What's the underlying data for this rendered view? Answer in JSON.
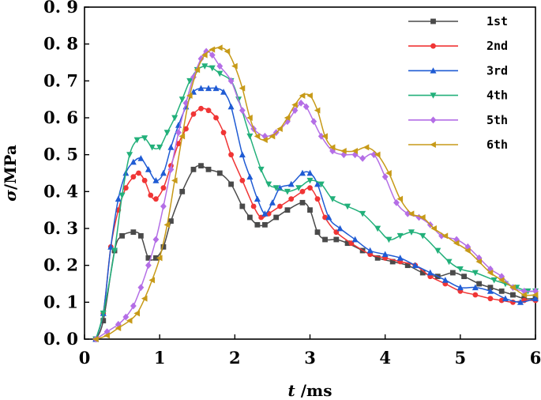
{
  "chart_data": {
    "type": "line",
    "title": "",
    "xlabel_italic": "t",
    "xlabel_unit": " /ms",
    "ylabel_italic": "σ",
    "ylabel_unit": "/MPa",
    "xlim": [
      0,
      6
    ],
    "ylim": [
      0,
      0.9
    ],
    "x_ticks": [
      "0",
      "1",
      "2",
      "3",
      "4",
      "5",
      "6"
    ],
    "y_ticks": [
      "0. 0",
      "0. 1",
      "0. 2",
      "0. 3",
      "0. 4",
      "0. 5",
      "0. 6",
      "0. 7",
      "0. 8",
      "0. 9"
    ],
    "legend_position": "top-right",
    "series": [
      {
        "name": "1st",
        "color": "#4a4a4a",
        "marker": "square",
        "points": [
          [
            0.15,
            0.0
          ],
          [
            0.25,
            0.05
          ],
          [
            0.4,
            0.24
          ],
          [
            0.5,
            0.28
          ],
          [
            0.65,
            0.29
          ],
          [
            0.75,
            0.28
          ],
          [
            0.85,
            0.22
          ],
          [
            0.95,
            0.22
          ],
          [
            1.05,
            0.25
          ],
          [
            1.15,
            0.32
          ],
          [
            1.3,
            0.4
          ],
          [
            1.45,
            0.46
          ],
          [
            1.55,
            0.47
          ],
          [
            1.65,
            0.46
          ],
          [
            1.8,
            0.45
          ],
          [
            1.95,
            0.42
          ],
          [
            2.1,
            0.36
          ],
          [
            2.2,
            0.33
          ],
          [
            2.3,
            0.31
          ],
          [
            2.4,
            0.31
          ],
          [
            2.55,
            0.33
          ],
          [
            2.7,
            0.35
          ],
          [
            2.9,
            0.37
          ],
          [
            3.0,
            0.35
          ],
          [
            3.1,
            0.29
          ],
          [
            3.2,
            0.27
          ],
          [
            3.35,
            0.27
          ],
          [
            3.5,
            0.26
          ],
          [
            3.7,
            0.24
          ],
          [
            3.9,
            0.22
          ],
          [
            4.1,
            0.21
          ],
          [
            4.3,
            0.2
          ],
          [
            4.5,
            0.18
          ],
          [
            4.7,
            0.17
          ],
          [
            4.9,
            0.18
          ],
          [
            5.05,
            0.17
          ],
          [
            5.25,
            0.15
          ],
          [
            5.4,
            0.14
          ],
          [
            5.55,
            0.13
          ],
          [
            5.7,
            0.12
          ],
          [
            5.85,
            0.11
          ],
          [
            6.0,
            0.11
          ]
        ]
      },
      {
        "name": "2nd",
        "color": "#f03535",
        "marker": "circle",
        "points": [
          [
            0.15,
            0.0
          ],
          [
            0.25,
            0.07
          ],
          [
            0.35,
            0.25
          ],
          [
            0.45,
            0.35
          ],
          [
            0.55,
            0.41
          ],
          [
            0.65,
            0.44
          ],
          [
            0.72,
            0.45
          ],
          [
            0.8,
            0.43
          ],
          [
            0.88,
            0.39
          ],
          [
            0.95,
            0.38
          ],
          [
            1.05,
            0.41
          ],
          [
            1.15,
            0.47
          ],
          [
            1.25,
            0.53
          ],
          [
            1.35,
            0.57
          ],
          [
            1.45,
            0.61
          ],
          [
            1.55,
            0.625
          ],
          [
            1.65,
            0.62
          ],
          [
            1.75,
            0.6
          ],
          [
            1.85,
            0.56
          ],
          [
            1.95,
            0.5
          ],
          [
            2.1,
            0.43
          ],
          [
            2.25,
            0.36
          ],
          [
            2.35,
            0.33
          ],
          [
            2.45,
            0.34
          ],
          [
            2.6,
            0.36
          ],
          [
            2.75,
            0.38
          ],
          [
            2.9,
            0.4
          ],
          [
            3.0,
            0.41
          ],
          [
            3.1,
            0.38
          ],
          [
            3.2,
            0.33
          ],
          [
            3.35,
            0.29
          ],
          [
            3.55,
            0.26
          ],
          [
            3.8,
            0.23
          ],
          [
            4.0,
            0.22
          ],
          [
            4.2,
            0.21
          ],
          [
            4.4,
            0.2
          ],
          [
            4.6,
            0.17
          ],
          [
            4.8,
            0.15
          ],
          [
            5.0,
            0.13
          ],
          [
            5.2,
            0.12
          ],
          [
            5.4,
            0.11
          ],
          [
            5.55,
            0.105
          ],
          [
            5.7,
            0.1
          ],
          [
            5.85,
            0.105
          ],
          [
            6.0,
            0.105
          ]
        ]
      },
      {
        "name": "3rd",
        "color": "#1f5bd4",
        "marker": "triangle-up",
        "points": [
          [
            0.15,
            0.0
          ],
          [
            0.25,
            0.07
          ],
          [
            0.35,
            0.25
          ],
          [
            0.45,
            0.38
          ],
          [
            0.55,
            0.45
          ],
          [
            0.65,
            0.48
          ],
          [
            0.75,
            0.49
          ],
          [
            0.85,
            0.46
          ],
          [
            0.95,
            0.43
          ],
          [
            1.05,
            0.45
          ],
          [
            1.15,
            0.52
          ],
          [
            1.25,
            0.58
          ],
          [
            1.35,
            0.63
          ],
          [
            1.45,
            0.67
          ],
          [
            1.55,
            0.68
          ],
          [
            1.65,
            0.68
          ],
          [
            1.75,
            0.68
          ],
          [
            1.85,
            0.67
          ],
          [
            1.95,
            0.63
          ],
          [
            2.1,
            0.5
          ],
          [
            2.2,
            0.44
          ],
          [
            2.3,
            0.38
          ],
          [
            2.4,
            0.34
          ],
          [
            2.5,
            0.37
          ],
          [
            2.6,
            0.41
          ],
          [
            2.75,
            0.42
          ],
          [
            2.9,
            0.45
          ],
          [
            3.0,
            0.45
          ],
          [
            3.1,
            0.42
          ],
          [
            3.25,
            0.33
          ],
          [
            3.4,
            0.3
          ],
          [
            3.6,
            0.27
          ],
          [
            3.8,
            0.24
          ],
          [
            4.0,
            0.23
          ],
          [
            4.2,
            0.22
          ],
          [
            4.4,
            0.2
          ],
          [
            4.6,
            0.18
          ],
          [
            4.8,
            0.16
          ],
          [
            5.0,
            0.14
          ],
          [
            5.2,
            0.14
          ],
          [
            5.4,
            0.13
          ],
          [
            5.6,
            0.11
          ],
          [
            5.8,
            0.1
          ],
          [
            6.0,
            0.11
          ]
        ]
      },
      {
        "name": "4th",
        "color": "#22b07a",
        "marker": "triangle-down",
        "points": [
          [
            0.15,
            0.0
          ],
          [
            0.25,
            0.07
          ],
          [
            0.4,
            0.24
          ],
          [
            0.5,
            0.39
          ],
          [
            0.6,
            0.5
          ],
          [
            0.7,
            0.54
          ],
          [
            0.8,
            0.545
          ],
          [
            0.9,
            0.52
          ],
          [
            1.0,
            0.52
          ],
          [
            1.1,
            0.56
          ],
          [
            1.2,
            0.6
          ],
          [
            1.3,
            0.65
          ],
          [
            1.4,
            0.7
          ],
          [
            1.5,
            0.73
          ],
          [
            1.6,
            0.74
          ],
          [
            1.7,
            0.735
          ],
          [
            1.8,
            0.72
          ],
          [
            1.95,
            0.7
          ],
          [
            2.05,
            0.65
          ],
          [
            2.2,
            0.55
          ],
          [
            2.35,
            0.46
          ],
          [
            2.45,
            0.42
          ],
          [
            2.55,
            0.41
          ],
          [
            2.7,
            0.4
          ],
          [
            2.85,
            0.41
          ],
          [
            3.0,
            0.43
          ],
          [
            3.15,
            0.42
          ],
          [
            3.3,
            0.38
          ],
          [
            3.5,
            0.36
          ],
          [
            3.7,
            0.34
          ],
          [
            3.9,
            0.3
          ],
          [
            4.05,
            0.27
          ],
          [
            4.2,
            0.28
          ],
          [
            4.35,
            0.29
          ],
          [
            4.5,
            0.28
          ],
          [
            4.7,
            0.24
          ],
          [
            4.85,
            0.21
          ],
          [
            5.0,
            0.19
          ],
          [
            5.2,
            0.18
          ],
          [
            5.45,
            0.16
          ],
          [
            5.6,
            0.15
          ],
          [
            5.75,
            0.14
          ],
          [
            5.9,
            0.13
          ],
          [
            6.0,
            0.13
          ]
        ]
      },
      {
        "name": "5th",
        "color": "#b46ee6",
        "marker": "diamond",
        "points": [
          [
            0.15,
            0.0
          ],
          [
            0.3,
            0.02
          ],
          [
            0.45,
            0.04
          ],
          [
            0.55,
            0.06
          ],
          [
            0.65,
            0.09
          ],
          [
            0.75,
            0.14
          ],
          [
            0.85,
            0.2
          ],
          [
            0.95,
            0.27
          ],
          [
            1.05,
            0.36
          ],
          [
            1.15,
            0.46
          ],
          [
            1.25,
            0.56
          ],
          [
            1.35,
            0.64
          ],
          [
            1.45,
            0.71
          ],
          [
            1.55,
            0.76
          ],
          [
            1.62,
            0.78
          ],
          [
            1.7,
            0.77
          ],
          [
            1.8,
            0.74
          ],
          [
            1.95,
            0.7
          ],
          [
            2.1,
            0.62
          ],
          [
            2.25,
            0.57
          ],
          [
            2.4,
            0.55
          ],
          [
            2.55,
            0.56
          ],
          [
            2.7,
            0.59
          ],
          [
            2.8,
            0.62
          ],
          [
            2.88,
            0.64
          ],
          [
            2.95,
            0.63
          ],
          [
            3.05,
            0.59
          ],
          [
            3.15,
            0.55
          ],
          [
            3.3,
            0.51
          ],
          [
            3.45,
            0.5
          ],
          [
            3.6,
            0.5
          ],
          [
            3.7,
            0.49
          ],
          [
            3.85,
            0.5
          ],
          [
            4.0,
            0.44
          ],
          [
            4.15,
            0.37
          ],
          [
            4.3,
            0.34
          ],
          [
            4.45,
            0.33
          ],
          [
            4.6,
            0.31
          ],
          [
            4.75,
            0.28
          ],
          [
            4.95,
            0.27
          ],
          [
            5.1,
            0.25
          ],
          [
            5.25,
            0.22
          ],
          [
            5.4,
            0.19
          ],
          [
            5.55,
            0.17
          ],
          [
            5.7,
            0.14
          ],
          [
            5.85,
            0.13
          ],
          [
            6.0,
            0.13
          ]
        ]
      },
      {
        "name": "6th",
        "color": "#c79a18",
        "marker": "triangle-left",
        "points": [
          [
            0.15,
            0.0
          ],
          [
            0.3,
            0.01
          ],
          [
            0.45,
            0.03
          ],
          [
            0.6,
            0.05
          ],
          [
            0.7,
            0.07
          ],
          [
            0.8,
            0.11
          ],
          [
            0.9,
            0.16
          ],
          [
            1.0,
            0.22
          ],
          [
            1.1,
            0.31
          ],
          [
            1.2,
            0.43
          ],
          [
            1.3,
            0.55
          ],
          [
            1.4,
            0.66
          ],
          [
            1.5,
            0.73
          ],
          [
            1.6,
            0.77
          ],
          [
            1.7,
            0.785
          ],
          [
            1.8,
            0.79
          ],
          [
            1.9,
            0.78
          ],
          [
            2.0,
            0.74
          ],
          [
            2.1,
            0.68
          ],
          [
            2.2,
            0.6
          ],
          [
            2.3,
            0.55
          ],
          [
            2.4,
            0.54
          ],
          [
            2.5,
            0.55
          ],
          [
            2.6,
            0.57
          ],
          [
            2.7,
            0.6
          ],
          [
            2.8,
            0.635
          ],
          [
            2.9,
            0.66
          ],
          [
            3.0,
            0.66
          ],
          [
            3.1,
            0.62
          ],
          [
            3.2,
            0.55
          ],
          [
            3.3,
            0.52
          ],
          [
            3.45,
            0.51
          ],
          [
            3.6,
            0.51
          ],
          [
            3.75,
            0.52
          ],
          [
            3.9,
            0.5
          ],
          [
            4.05,
            0.45
          ],
          [
            4.2,
            0.38
          ],
          [
            4.35,
            0.34
          ],
          [
            4.5,
            0.33
          ],
          [
            4.65,
            0.3
          ],
          [
            4.8,
            0.28
          ],
          [
            4.95,
            0.26
          ],
          [
            5.1,
            0.24
          ],
          [
            5.25,
            0.21
          ],
          [
            5.4,
            0.18
          ],
          [
            5.55,
            0.16
          ],
          [
            5.7,
            0.14
          ],
          [
            5.85,
            0.12
          ],
          [
            6.0,
            0.12
          ]
        ]
      }
    ]
  }
}
